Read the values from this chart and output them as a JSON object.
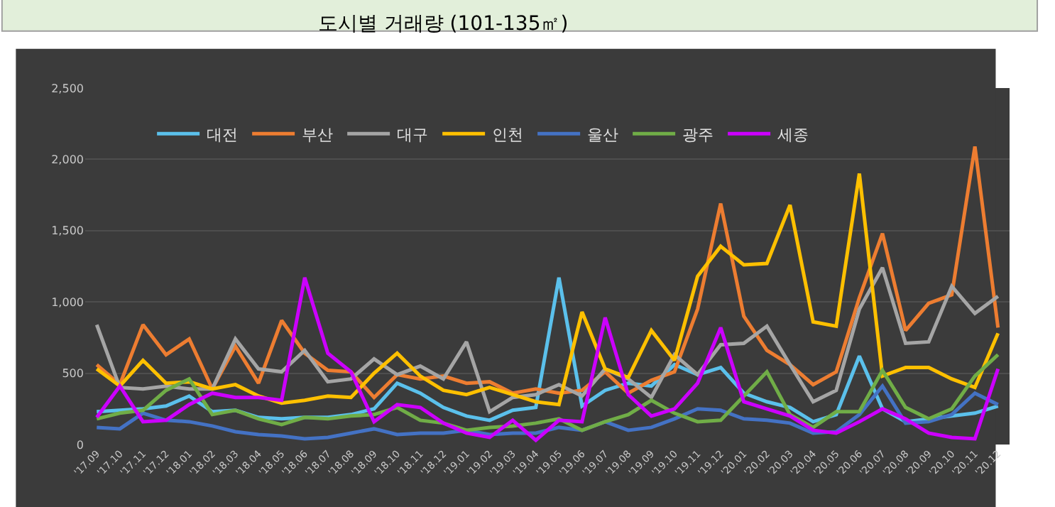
{
  "chart_data": {
    "type": "line",
    "title": "도시별 거래량 (101-135㎡)",
    "categories": [
      "'17.09",
      "'17.10",
      "'17.11",
      "'17.12",
      "'18.01",
      "'18.02",
      "'18.03",
      "'18.04",
      "'18.05",
      "'18.06",
      "'18.07",
      "'18.08",
      "'18.09",
      "'18.10",
      "'18.11",
      "'18.12",
      "'19.01",
      "'19.02",
      "'19.03",
      "'19.04",
      "'19.05",
      "'19.06",
      "'19.07",
      "'19.08",
      "'19.09",
      "'19.10",
      "'19.11",
      "'19.12",
      "'20.01",
      "'20.02",
      "'20.03",
      "'20.04",
      "'20.05",
      "'20.06",
      "'20.07",
      "'20.08",
      "'20.09",
      "'20.10",
      "'20.11",
      "'20.12"
    ],
    "series": [
      {
        "name": "대전",
        "color": "#5bc0eb",
        "values": [
          230,
          240,
          250,
          270,
          340,
          230,
          240,
          190,
          180,
          190,
          190,
          210,
          250,
          430,
          360,
          260,
          200,
          170,
          240,
          260,
          1170,
          270,
          380,
          430,
          410,
          560,
          490,
          540,
          360,
          300,
          260,
          160,
          210,
          620,
          250,
          160,
          180,
          200,
          220,
          270
        ]
      },
      {
        "name": "부산",
        "color": "#ed7d31",
        "values": [
          560,
          420,
          840,
          630,
          740,
          390,
          690,
          430,
          870,
          640,
          520,
          510,
          330,
          490,
          460,
          480,
          430,
          440,
          360,
          390,
          360,
          380,
          510,
          360,
          450,
          510,
          950,
          1690,
          900,
          660,
          560,
          420,
          510,
          1030,
          1480,
          800,
          990,
          1050,
          2090,
          820
        ]
      },
      {
        "name": "대구",
        "color": "#a5a5a5",
        "values": [
          840,
          400,
          390,
          410,
          390,
          390,
          740,
          530,
          510,
          660,
          440,
          460,
          600,
          490,
          550,
          460,
          720,
          230,
          330,
          350,
          420,
          340,
          530,
          460,
          330,
          630,
          490,
          700,
          710,
          830,
          560,
          300,
          380,
          950,
          1240,
          710,
          720,
          1110,
          920,
          1040
        ]
      },
      {
        "name": "인천",
        "color": "#ffc000",
        "values": [
          530,
          410,
          590,
          430,
          440,
          390,
          420,
          340,
          290,
          310,
          340,
          330,
          500,
          640,
          480,
          380,
          350,
          400,
          350,
          300,
          280,
          930,
          530,
          470,
          800,
          590,
          1180,
          1390,
          1260,
          1270,
          1680,
          860,
          830,
          1900,
          480,
          540,
          540,
          460,
          400,
          780
        ]
      },
      {
        "name": "울산",
        "color": "#4472c4",
        "values": [
          120,
          110,
          220,
          170,
          160,
          130,
          90,
          70,
          60,
          40,
          50,
          80,
          110,
          70,
          80,
          80,
          100,
          70,
          80,
          80,
          120,
          100,
          160,
          100,
          120,
          180,
          250,
          240,
          180,
          170,
          150,
          80,
          90,
          210,
          410,
          150,
          160,
          210,
          360,
          280
        ]
      },
      {
        "name": "광주",
        "color": "#70ad47",
        "values": [
          180,
          220,
          240,
          380,
          460,
          210,
          240,
          180,
          140,
          190,
          180,
          200,
          210,
          260,
          170,
          150,
          100,
          120,
          130,
          150,
          180,
          100,
          160,
          210,
          310,
          220,
          160,
          170,
          340,
          510,
          210,
          120,
          230,
          230,
          520,
          260,
          180,
          250,
          480,
          630
        ]
      },
      {
        "name": "세종",
        "color": "#cc00ff",
        "values": [
          190,
          410,
          160,
          170,
          280,
          360,
          330,
          330,
          310,
          1170,
          640,
          510,
          160,
          280,
          260,
          150,
          80,
          50,
          170,
          30,
          170,
          160,
          890,
          350,
          200,
          250,
          430,
          820,
          300,
          250,
          200,
          100,
          80,
          160,
          250,
          180,
          80,
          50,
          40,
          530
        ]
      }
    ],
    "ylim": [
      0,
      2500
    ],
    "yticks": [
      {
        "value": 0,
        "label": "0"
      },
      {
        "value": 500,
        "label": "500"
      },
      {
        "value": 1000,
        "label": "1,000"
      },
      {
        "value": 1500,
        "label": "1,500"
      },
      {
        "value": 2000,
        "label": "2,000"
      },
      {
        "value": 2500,
        "label": "2,500"
      }
    ],
    "grid": "y",
    "legend": "top left",
    "marker": "none",
    "line_style": "solid"
  }
}
